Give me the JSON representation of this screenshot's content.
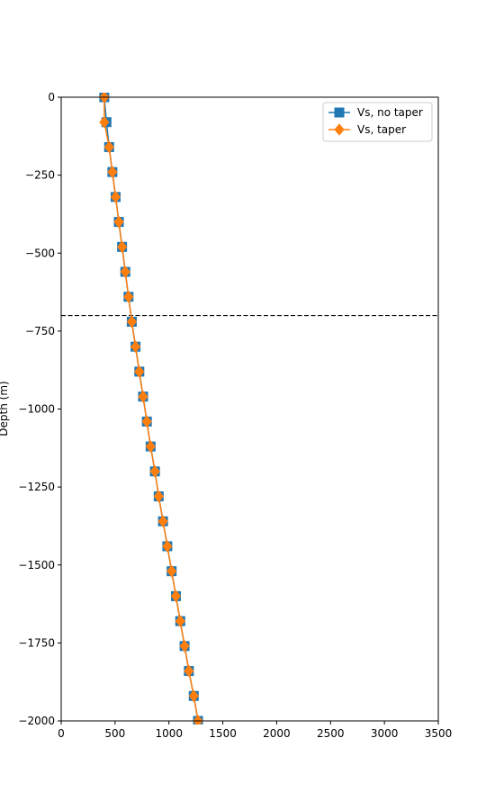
{
  "chart_data": {
    "type": "line",
    "title": "",
    "xlabel": "",
    "ylabel": "Depth (m)",
    "xlim": [
      0,
      3500
    ],
    "ylim": [
      -2000,
      0
    ],
    "xticks": [
      0,
      500,
      1000,
      1500,
      2000,
      2500,
      3000,
      3500
    ],
    "yticks": [
      0,
      -250,
      -500,
      -750,
      -1000,
      -1250,
      -1500,
      -1750,
      -2000
    ],
    "grid": false,
    "legend_location": "top-right",
    "reference_lines": [
      {
        "orientation": "horizontal",
        "y": -700,
        "style": "dashed",
        "color": "#000000"
      }
    ],
    "series": [
      {
        "name": "Vs, no taper",
        "color": "#1f77b4",
        "marker": "square",
        "points": [
          [
            400,
            0
          ],
          [
            420,
            -80
          ],
          [
            445,
            -160
          ],
          [
            475,
            -240
          ],
          [
            505,
            -320
          ],
          [
            535,
            -400
          ],
          [
            565,
            -480
          ],
          [
            595,
            -560
          ],
          [
            625,
            -640
          ],
          [
            655,
            -720
          ],
          [
            690,
            -800
          ],
          [
            725,
            -880
          ],
          [
            760,
            -960
          ],
          [
            795,
            -1040
          ],
          [
            830,
            -1120
          ],
          [
            870,
            -1200
          ],
          [
            905,
            -1280
          ],
          [
            945,
            -1360
          ],
          [
            985,
            -1440
          ],
          [
            1025,
            -1520
          ],
          [
            1065,
            -1600
          ],
          [
            1105,
            -1680
          ],
          [
            1145,
            -1760
          ],
          [
            1185,
            -1840
          ],
          [
            1230,
            -1920
          ],
          [
            1270,
            -2000
          ]
        ]
      },
      {
        "name": "Vs, taper",
        "color": "#ff7f0e",
        "marker": "diamond",
        "points": [
          [
            400,
            0
          ],
          [
            400,
            -80
          ],
          [
            445,
            -160
          ],
          [
            475,
            -240
          ],
          [
            505,
            -320
          ],
          [
            535,
            -400
          ],
          [
            565,
            -480
          ],
          [
            595,
            -560
          ],
          [
            625,
            -640
          ],
          [
            655,
            -720
          ],
          [
            690,
            -800
          ],
          [
            725,
            -880
          ],
          [
            760,
            -960
          ],
          [
            795,
            -1040
          ],
          [
            830,
            -1120
          ],
          [
            870,
            -1200
          ],
          [
            905,
            -1280
          ],
          [
            945,
            -1360
          ],
          [
            985,
            -1440
          ],
          [
            1025,
            -1520
          ],
          [
            1065,
            -1600
          ],
          [
            1105,
            -1680
          ],
          [
            1145,
            -1760
          ],
          [
            1185,
            -1840
          ],
          [
            1230,
            -1920
          ],
          [
            1270,
            -2000
          ]
        ]
      }
    ]
  }
}
